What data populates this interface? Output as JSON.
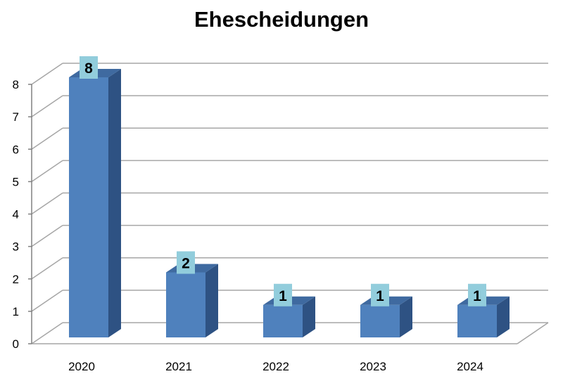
{
  "chart_data": {
    "type": "bar",
    "title": "Ehescheidungen",
    "categories": [
      "2020",
      "2021",
      "2022",
      "2023",
      "2024"
    ],
    "values": [
      8,
      2,
      1,
      1,
      1
    ],
    "ylim": [
      0,
      8
    ],
    "yticks": [
      "0",
      "1",
      "2",
      "3",
      "4",
      "5",
      "6",
      "7",
      "8"
    ],
    "grid": true,
    "legend": false,
    "three_d": true,
    "colors": {
      "bar_front": "#4F81BD",
      "bar_side": "#2E5283",
      "bar_top": "#3F6AA0",
      "label_box": "#92CDDC",
      "grid": "#A6A6A6"
    }
  }
}
